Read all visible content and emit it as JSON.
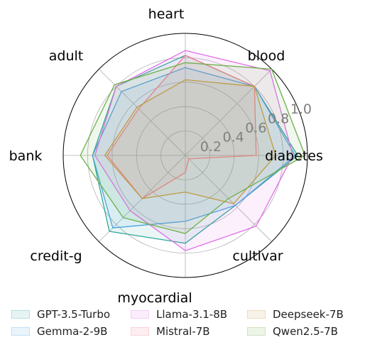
{
  "chart_data": {
    "type": "radar",
    "axes": [
      "diabetes",
      "blood",
      "heart",
      "adult",
      "bank",
      "credit-g",
      "myocardial",
      "cultivar"
    ],
    "radial_ticks": [
      "0.2",
      "0.4",
      "0.6",
      "0.8",
      "1.0"
    ],
    "radial_tick_values": [
      0.2,
      0.4,
      0.6,
      0.8,
      1.0
    ],
    "rlim": [
      0,
      1.0
    ],
    "grid": true,
    "legend_position": "bottom",
    "series": [
      {
        "name": "GPT-3.5-Turbo",
        "color": "#2ca89a",
        "values": [
          0.92,
          0.8,
          0.82,
          0.8,
          0.76,
          0.88,
          0.72,
          0.58
        ]
      },
      {
        "name": "Gemma-2-9B",
        "color": "#4aa3df",
        "values": [
          0.9,
          0.8,
          0.72,
          0.74,
          0.76,
          0.84,
          0.54,
          0.58
        ]
      },
      {
        "name": "Llama-3.1-8B",
        "color": "#e070e8",
        "values": [
          0.88,
          0.98,
          0.86,
          0.8,
          0.74,
          0.64,
          0.78,
          0.82
        ]
      },
      {
        "name": "Mistral-7B",
        "color": "#f07f8e",
        "values": [
          0.58,
          0.8,
          0.82,
          0.54,
          0.64,
          0.5,
          0.14,
          0.04
        ]
      },
      {
        "name": "Deepseek-7B",
        "color": "#c89a44",
        "values": [
          0.74,
          0.8,
          0.62,
          0.56,
          0.66,
          0.5,
          0.3,
          0.56
        ]
      },
      {
        "name": "Qwen2.5-7B",
        "color": "#6cb04a",
        "values": [
          0.98,
          1.0,
          0.76,
          0.82,
          0.86,
          0.72,
          0.64,
          0.5
        ]
      }
    ]
  }
}
